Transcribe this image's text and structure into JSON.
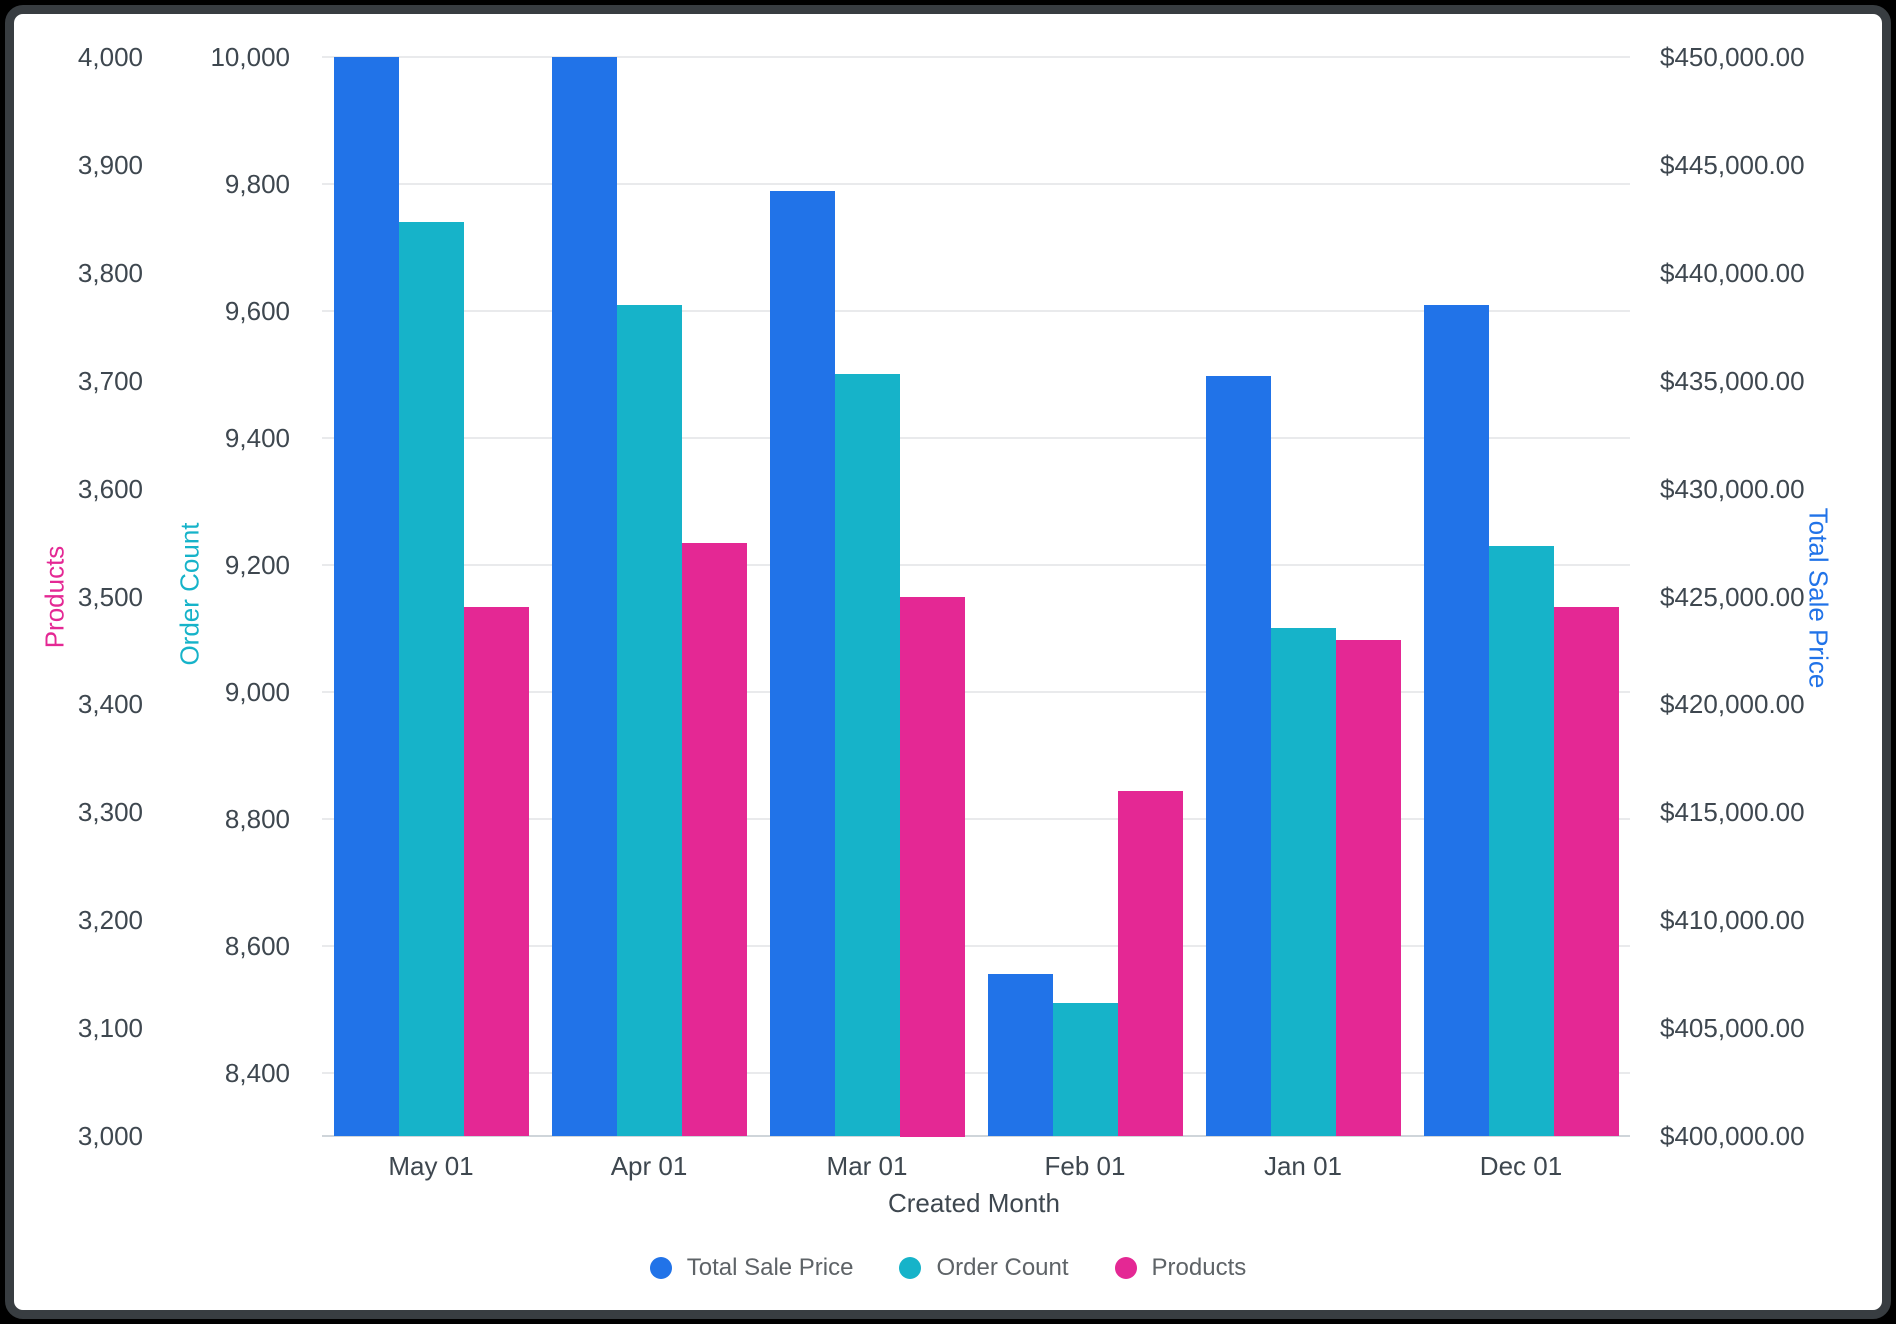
{
  "window": {
    "background": "#000000",
    "frame_border_color": "#383d41",
    "canvas_color": "#ffffff"
  },
  "chart_data": {
    "type": "bar",
    "x_title": "Created Month",
    "categories": [
      "May 01",
      "Apr 01",
      "Mar 01",
      "Feb 01",
      "Jan 01",
      "Dec 01"
    ],
    "series": [
      {
        "name": "Total Sale Price",
        "axis": "sale",
        "color": "#2173e8",
        "values": [
          450000,
          450000,
          443800,
          407500,
          435200,
          438500
        ]
      },
      {
        "name": "Order Count",
        "axis": "order",
        "color": "#16b3c9",
        "values": [
          9740,
          9610,
          9500,
          8510,
          9100,
          9230
        ]
      },
      {
        "name": "Products",
        "axis": "products",
        "color": "#e42894",
        "values": [
          3490,
          3550,
          3500,
          3320,
          3460,
          3490
        ]
      }
    ],
    "axes": {
      "products": {
        "title": "Products",
        "title_color": "#e42894",
        "min": 3000,
        "max": 4000,
        "tick_values": [
          4000,
          3900,
          3800,
          3700,
          3600,
          3500,
          3400,
          3300,
          3200,
          3100,
          3000
        ],
        "tick_labels": [
          "4,000",
          "3,900",
          "3,800",
          "3,700",
          "3,600",
          "3,500",
          "3,400",
          "3,300",
          "3,200",
          "3,100",
          "3,000"
        ]
      },
      "order": {
        "title": "Order Count",
        "title_color": "#16b3c9",
        "min": 8300,
        "max": 10000,
        "tick_values": [
          10000,
          9800,
          9600,
          9400,
          9200,
          9000,
          8800,
          8600,
          8400
        ],
        "tick_labels": [
          "10,000",
          "9,800",
          "9,600",
          "9,400",
          "9,200",
          "9,000",
          "8,800",
          "8,600",
          "8,400"
        ]
      },
      "sale": {
        "title": "Total Sale Price",
        "title_color": "#2173e8",
        "min": 400000,
        "max": 450000,
        "tick_values": [
          450000,
          445000,
          440000,
          435000,
          430000,
          425000,
          420000,
          415000,
          410000,
          405000,
          400000
        ],
        "tick_labels": [
          "$450,000.00",
          "$445,000.00",
          "$440,000.00",
          "$435,000.00",
          "$430,000.00",
          "$425,000.00",
          "$420,000.00",
          "$415,000.00",
          "$410,000.00",
          "$405,000.00",
          "$400,000.00"
        ]
      }
    },
    "gridlines_follow_axis": "order",
    "legend": [
      {
        "label": "Total Sale Price",
        "color": "#2173e8"
      },
      {
        "label": "Order Count",
        "color": "#16b3c9"
      },
      {
        "label": "Products",
        "color": "#e42894"
      }
    ],
    "style": {
      "grid_color": "#e9eaec",
      "baseline_color": "#cfd5da",
      "tick_text_color": "#3e474f",
      "legend_text_color": "#5e6367"
    }
  }
}
